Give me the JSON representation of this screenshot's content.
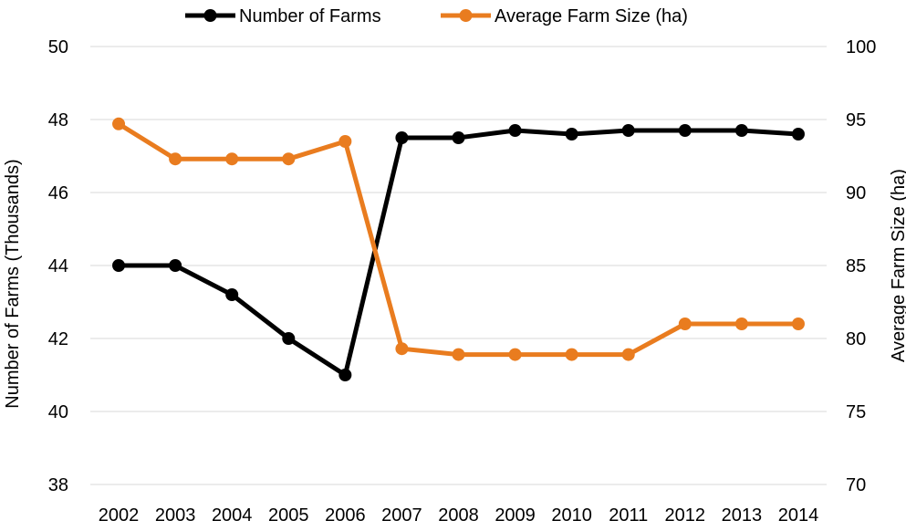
{
  "chart_data": {
    "type": "line",
    "categories": [
      "2002",
      "2003",
      "2004",
      "2005",
      "2006",
      "2007",
      "2008",
      "2009",
      "2010",
      "2011",
      "2012",
      "2013",
      "2014"
    ],
    "series": [
      {
        "name": "Number of Farms",
        "axis": "left",
        "color": "#000000",
        "values": [
          44.0,
          44.0,
          43.2,
          42.0,
          41.0,
          47.5,
          47.5,
          47.7,
          47.6,
          47.7,
          47.7,
          47.7,
          47.6
        ]
      },
      {
        "name": "Average Farm Size (ha)",
        "axis": "right",
        "color": "#e97c1f",
        "values": [
          94.7,
          92.3,
          92.3,
          92.3,
          93.5,
          79.3,
          78.9,
          78.9,
          78.9,
          78.9,
          81.0,
          81.0,
          81.0
        ]
      }
    ],
    "ylabel_left": "Number of Farms (Thousands)",
    "ylabel_right": "Average Farm Size (ha)",
    "ylim_left": [
      38,
      50
    ],
    "ylim_right": [
      70,
      100
    ],
    "yticks_left": [
      "50",
      "48",
      "46",
      "44",
      "42",
      "40",
      "38"
    ],
    "yticks_right": [
      "100",
      "95",
      "90",
      "85",
      "80",
      "75",
      "70"
    ],
    "grid": true,
    "legend_position": "top-center"
  }
}
